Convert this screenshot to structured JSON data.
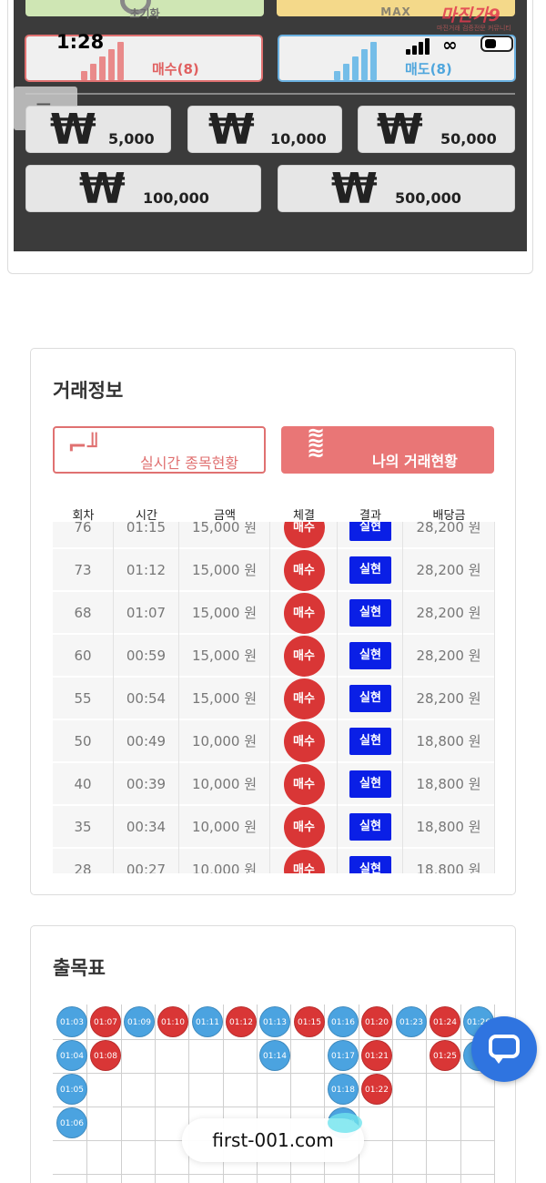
{
  "status_bar": {
    "time": "1:28"
  },
  "watermark": {
    "brand": "마진가9",
    "tagline": "마진거래 검증전문 커뮤니티"
  },
  "controls": {
    "reset_label": "초기화",
    "max_label": "MAX",
    "buy_label": "매수(8)",
    "sell_label": "매도(8)",
    "currency_symbol": "₩",
    "amounts": [
      "5,000",
      "10,000",
      "50,000",
      "100,000",
      "500,000"
    ]
  },
  "trade_info": {
    "title": "거래정보",
    "tab_live": "실시간 종목현황",
    "tab_mine": "나의 거래현황",
    "columns": [
      "회차",
      "시간",
      "금액",
      "체결",
      "결과",
      "배당금"
    ],
    "rows": [
      [
        "76",
        "01:15",
        "15,000 원",
        "매수",
        "실현",
        "28,200 원"
      ],
      [
        "73",
        "01:12",
        "15,000 원",
        "매수",
        "실현",
        "28,200 원"
      ],
      [
        "68",
        "01:07",
        "15,000 원",
        "매수",
        "실현",
        "28,200 원"
      ],
      [
        "60",
        "00:59",
        "15,000 원",
        "매수",
        "실현",
        "28,200 원"
      ],
      [
        "55",
        "00:54",
        "15,000 원",
        "매수",
        "실현",
        "28,200 원"
      ],
      [
        "50",
        "00:49",
        "10,000 원",
        "매수",
        "실현",
        "18,800 원"
      ],
      [
        "40",
        "00:39",
        "10,000 원",
        "매수",
        "실현",
        "18,800 원"
      ],
      [
        "35",
        "00:34",
        "10,000 원",
        "매수",
        "실현",
        "18,800 원"
      ],
      [
        "28",
        "00:27",
        "10,000 원",
        "매수",
        "실현",
        "18,800 원"
      ]
    ]
  },
  "result_chart": {
    "title": "출목표",
    "columns": [
      [
        {
          "t": "01:03",
          "c": "blue"
        },
        {
          "t": "01:04",
          "c": "blue"
        },
        {
          "t": "01:05",
          "c": "blue"
        },
        {
          "t": "01:06",
          "c": "blue"
        }
      ],
      [
        {
          "t": "01:07",
          "c": "red"
        },
        {
          "t": "01:08",
          "c": "red"
        }
      ],
      [
        {
          "t": "01:09",
          "c": "blue"
        }
      ],
      [
        {
          "t": "01:10",
          "c": "red"
        }
      ],
      [
        {
          "t": "01:11",
          "c": "blue"
        }
      ],
      [
        {
          "t": "01:12",
          "c": "red"
        }
      ],
      [
        {
          "t": "01:13",
          "c": "blue"
        },
        {
          "t": "01:14",
          "c": "blue"
        }
      ],
      [
        {
          "t": "01:15",
          "c": "red"
        }
      ],
      [
        {
          "t": "01:16",
          "c": "blue"
        },
        {
          "t": "01:17",
          "c": "blue"
        },
        {
          "t": "01:18",
          "c": "blue"
        },
        {
          "t": "01:19",
          "c": "blue"
        }
      ],
      [
        {
          "t": "01:20",
          "c": "red"
        },
        {
          "t": "01:21",
          "c": "red"
        },
        {
          "t": "01:22",
          "c": "red"
        }
      ],
      [
        {
          "t": "01:23",
          "c": "blue"
        }
      ],
      [
        {
          "t": "01:24",
          "c": "red"
        },
        {
          "t": "01:25",
          "c": "red"
        }
      ],
      [
        {
          "t": "01:26",
          "c": "blue"
        },
        {
          "t": "",
          "c": "blue"
        }
      ]
    ]
  },
  "browser": {
    "url": "first-001.com"
  },
  "colors": {
    "buy": "#d93636",
    "sell": "#4ba3e0",
    "realized": "#0a1fe6"
  }
}
